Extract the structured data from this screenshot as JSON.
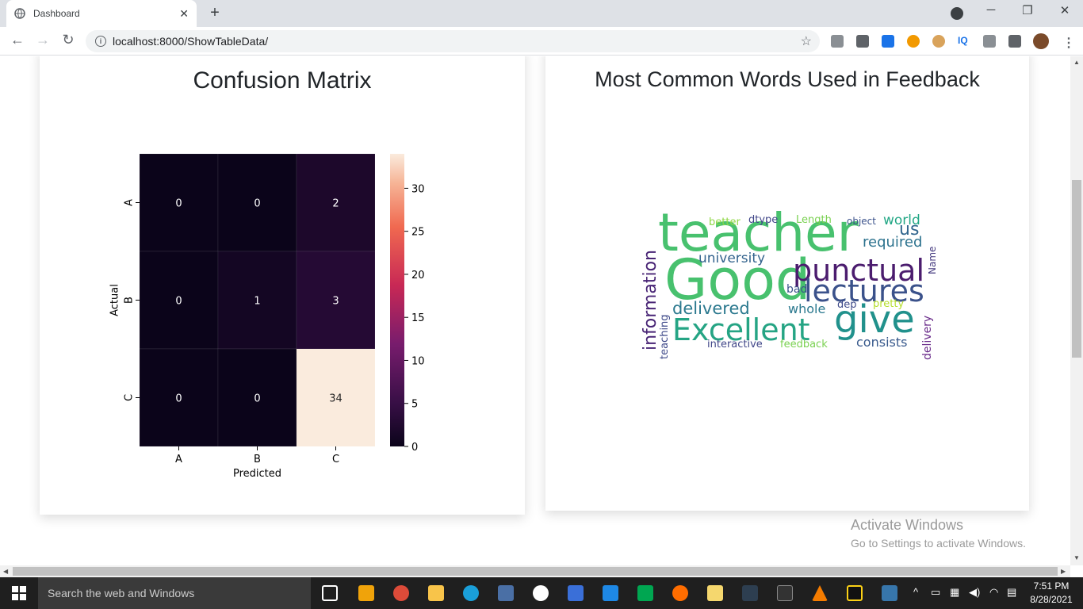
{
  "browser": {
    "tab_title": "Dashboard",
    "tab_close": "✕",
    "new_tab": "+",
    "url": "localhost:8000/ShowTableData/",
    "window_controls": {
      "minimize": "─",
      "restore": "❐",
      "close": "✕"
    },
    "nav": {
      "back": "←",
      "forward": "→",
      "reload": "↻"
    }
  },
  "cards": {
    "confusion_title": "Confusion Matrix",
    "wordcloud_title": "Most Common Words Used in Feedback"
  },
  "chart_data": {
    "type": "heatmap",
    "title": "Confusion Matrix",
    "xlabel": "Predicted",
    "ylabel": "Actual",
    "x_categories": [
      "A",
      "B",
      "C"
    ],
    "y_categories": [
      "A",
      "B",
      "C"
    ],
    "values": [
      [
        0,
        0,
        2
      ],
      [
        0,
        1,
        3
      ],
      [
        0,
        0,
        34
      ]
    ],
    "colorbar": {
      "min": 0,
      "max": 34,
      "ticks": [
        0,
        5,
        10,
        15,
        20,
        25,
        30
      ]
    }
  },
  "wordcloud": {
    "words": [
      {
        "text": "teacher",
        "color": "#48c16e"
      },
      {
        "text": "Good",
        "color": "#48c16e"
      },
      {
        "text": "Excellent",
        "color": "#25a484"
      },
      {
        "text": "give",
        "color": "#21918c"
      },
      {
        "text": "punctual",
        "color": "#4b1c6e"
      },
      {
        "text": "lectures",
        "color": "#3b528b"
      },
      {
        "text": "information",
        "color": "#482475"
      },
      {
        "text": "delivered",
        "color": "#2a788e"
      },
      {
        "text": "university",
        "color": "#33638d"
      },
      {
        "text": "required",
        "color": "#2c728e"
      },
      {
        "text": "us",
        "color": "#31668e"
      },
      {
        "text": "world",
        "color": "#22a785"
      },
      {
        "text": "object",
        "color": "#3b528b"
      },
      {
        "text": "Length",
        "color": "#7ad151"
      },
      {
        "text": "dtype",
        "color": "#404688"
      },
      {
        "text": "better",
        "color": "#8fd744"
      },
      {
        "text": "whole",
        "color": "#2a788e"
      },
      {
        "text": "dep",
        "color": "#3e4a89"
      },
      {
        "text": "pretty",
        "color": "#b5de2b"
      },
      {
        "text": "bad",
        "color": "#3b528b"
      },
      {
        "text": "consists",
        "color": "#38598c"
      },
      {
        "text": "feedback",
        "color": "#7ad151"
      },
      {
        "text": "interactive",
        "color": "#404688"
      },
      {
        "text": "teaching",
        "color": "#3e4989"
      },
      {
        "text": "Name",
        "color": "#44397f"
      },
      {
        "text": "delivery",
        "color": "#6a2c8a"
      }
    ]
  },
  "watermark": {
    "line1": "Activate Windows",
    "line2": "Go to Settings to activate Windows."
  },
  "taskbar": {
    "search_placeholder": "Search the web and Windows",
    "time": "7:51 PM",
    "date": "8/28/2021"
  }
}
